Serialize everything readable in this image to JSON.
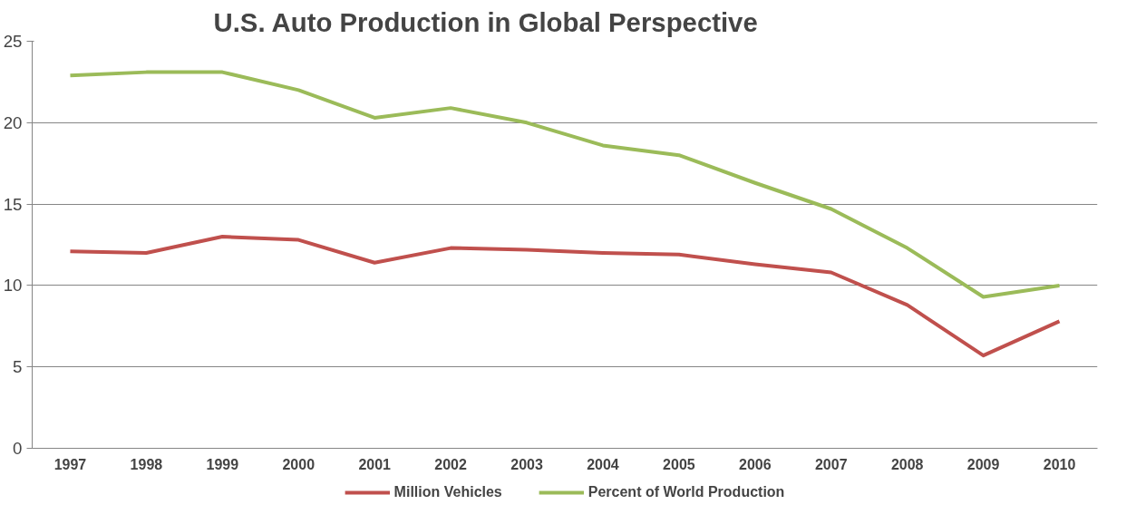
{
  "chart_data": {
    "type": "line",
    "title": "U.S. Auto Production in Global Perspective",
    "categories": [
      "1997",
      "1998",
      "1999",
      "2000",
      "2001",
      "2002",
      "2003",
      "2004",
      "2005",
      "2006",
      "2007",
      "2008",
      "2009",
      "2010"
    ],
    "series": [
      {
        "name": "Million Vehicles",
        "color": "#c0504d",
        "values": [
          12.1,
          12.0,
          13.0,
          12.8,
          11.4,
          12.3,
          12.2,
          12.0,
          11.9,
          11.3,
          10.8,
          8.8,
          5.7,
          7.8
        ]
      },
      {
        "name": "Percent of World Production",
        "color": "#9bbb59",
        "values": [
          22.9,
          23.1,
          23.1,
          22.0,
          20.3,
          20.9,
          20.0,
          18.6,
          18.0,
          16.3,
          14.7,
          12.3,
          9.3,
          10.0
        ]
      }
    ],
    "ylim": [
      0,
      25
    ],
    "yticks": [
      0,
      5,
      10,
      15,
      20,
      25
    ],
    "grid": "y",
    "legend": "bottom",
    "marker": "none",
    "line_style": "solid"
  }
}
